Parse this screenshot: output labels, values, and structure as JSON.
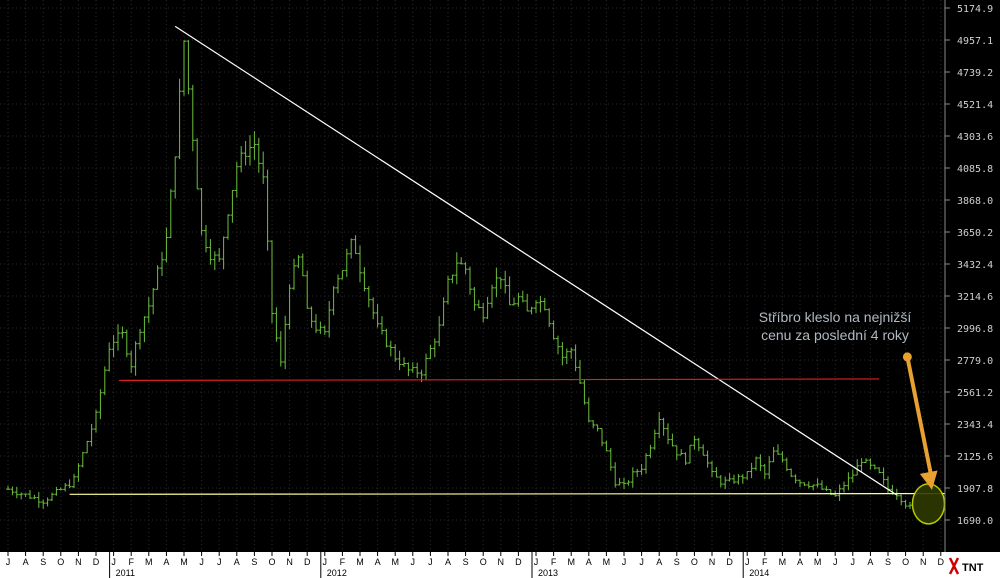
{
  "chart_data": {
    "type": "ohlc",
    "y_ticks": [
      "5174.9",
      "4957.1",
      "4739.2",
      "4521.4",
      "4303.6",
      "4085.8",
      "3868.0",
      "3650.2",
      "3432.4",
      "3214.6",
      "2996.8",
      "2779.0",
      "2561.2",
      "2343.4",
      "2125.6",
      "1907.8",
      "1690.0"
    ],
    "ylim": [
      1602.9,
      5174.9
    ],
    "month_labels": [
      "J",
      "A",
      "S",
      "O",
      "N",
      "D",
      "J",
      "F",
      "M",
      "A",
      "M",
      "J",
      "J",
      "A",
      "S",
      "O",
      "N",
      "D",
      "J",
      "F",
      "M",
      "A",
      "M",
      "J",
      "J",
      "A",
      "S",
      "O",
      "N",
      "D",
      "J",
      "F",
      "M",
      "A",
      "M",
      "J",
      "J",
      "A",
      "S",
      "O",
      "N",
      "D",
      "J",
      "F",
      "M",
      "A",
      "M",
      "J",
      "J",
      "A",
      "S",
      "O",
      "N",
      "D"
    ],
    "year_labels": [
      {
        "label": "2011",
        "month_index": 6
      },
      {
        "label": "2012",
        "month_index": 18
      },
      {
        "label": "2013",
        "month_index": 30
      },
      {
        "label": "2014",
        "month_index": 42
      }
    ],
    "price_path": [
      [
        0,
        1900
      ],
      [
        2,
        1820
      ],
      [
        3.7,
        1950
      ],
      [
        5,
        2400
      ],
      [
        5.8,
        2900
      ],
      [
        6.5,
        2950
      ],
      [
        7,
        2750
      ],
      [
        7.5,
        3000
      ],
      [
        8,
        3150
      ],
      [
        9,
        3600
      ],
      [
        9.5,
        4200
      ],
      [
        10,
        4950
      ],
      [
        10.5,
        4300
      ],
      [
        11,
        3650
      ],
      [
        11.5,
        3500
      ],
      [
        12,
        3450
      ],
      [
        12.5,
        3800
      ],
      [
        13,
        4100
      ],
      [
        13.5,
        4200
      ],
      [
        14,
        4250
      ],
      [
        14.5,
        4000
      ],
      [
        15,
        3100
      ],
      [
        15.5,
        2750
      ],
      [
        16,
        3300
      ],
      [
        16.6,
        3500
      ],
      [
        17,
        3100
      ],
      [
        17.5,
        3000
      ],
      [
        18,
        2950
      ],
      [
        18.5,
        3300
      ],
      [
        19,
        3400
      ],
      [
        19.6,
        3600
      ],
      [
        20,
        3400
      ],
      [
        20.5,
        3200
      ],
      [
        21,
        3000
      ],
      [
        21.5,
        2900
      ],
      [
        22,
        2800
      ],
      [
        22.8,
        2700
      ],
      [
        23.5,
        2700
      ],
      [
        24,
        2850
      ],
      [
        24.5,
        3000
      ],
      [
        25,
        3300
      ],
      [
        25.5,
        3450
      ],
      [
        26,
        3400
      ],
      [
        26.5,
        3150
      ],
      [
        27,
        3100
      ],
      [
        27.5,
        3300
      ],
      [
        28,
        3350
      ],
      [
        28.5,
        3150
      ],
      [
        29,
        3200
      ],
      [
        29.5,
        3100
      ],
      [
        30,
        3200
      ],
      [
        30.5,
        3150
      ],
      [
        31,
        2950
      ],
      [
        31.5,
        2800
      ],
      [
        32,
        2850
      ],
      [
        32.4,
        2680
      ],
      [
        33,
        2350
      ],
      [
        33.5,
        2300
      ],
      [
        34,
        2150
      ],
      [
        34.5,
        1950
      ],
      [
        35,
        1920
      ],
      [
        35.5,
        2000
      ],
      [
        36,
        2050
      ],
      [
        36.5,
        2200
      ],
      [
        37,
        2400
      ],
      [
        37.5,
        2250
      ],
      [
        38,
        2150
      ],
      [
        38.5,
        2100
      ],
      [
        39,
        2250
      ],
      [
        39.5,
        2150
      ],
      [
        40,
        2000
      ],
      [
        40.5,
        1950
      ],
      [
        41,
        1950
      ],
      [
        42,
        2000
      ],
      [
        42.5,
        2100
      ],
      [
        43,
        2000
      ],
      [
        43.5,
        2150
      ],
      [
        44,
        2100
      ],
      [
        44.5,
        2000
      ],
      [
        45,
        1950
      ],
      [
        46,
        1920
      ],
      [
        46.5,
        1880
      ],
      [
        47,
        1850
      ],
      [
        47.5,
        1930
      ],
      [
        48,
        2000
      ],
      [
        48.5,
        2100
      ],
      [
        49,
        2050
      ],
      [
        49.5,
        2000
      ],
      [
        50,
        1900
      ],
      [
        50.5,
        1870
      ],
      [
        51,
        1800
      ],
      [
        51.3,
        1770
      ]
    ],
    "series_color": "#6bbf3c",
    "grid_color": "#2a2a2a",
    "lines": [
      {
        "kind": "resistance",
        "color": "#ffffff",
        "from": {
          "m": 9.5,
          "p": 5050
        },
        "to": {
          "m": 50.5,
          "p": 1860
        }
      },
      {
        "kind": "support",
        "color": "#e02020",
        "from": {
          "m": 6.3,
          "p": 2640
        },
        "to": {
          "m": 49.5,
          "p": 2650
        }
      },
      {
        "kind": "support",
        "color": "#ffff99",
        "from": {
          "m": 3.5,
          "p": 1865
        },
        "to": {
          "m": 55.5,
          "p": 1870
        }
      }
    ],
    "annotation": {
      "text_line1": "Stříbro kleslo na nejnižší",
      "text_line2": "cenu za poslední 4 roky",
      "arrow_color": "#e8a030",
      "arrow_from": {
        "m": 51.1,
        "p": 2800
      },
      "arrow_to": {
        "m": 52.5,
        "p": 1895
      },
      "circle_color": "#c8e000",
      "circle_fill": "#2e3a00",
      "circle_at": {
        "m": 52.3,
        "p": 1800
      }
    },
    "logo": "TNT"
  }
}
